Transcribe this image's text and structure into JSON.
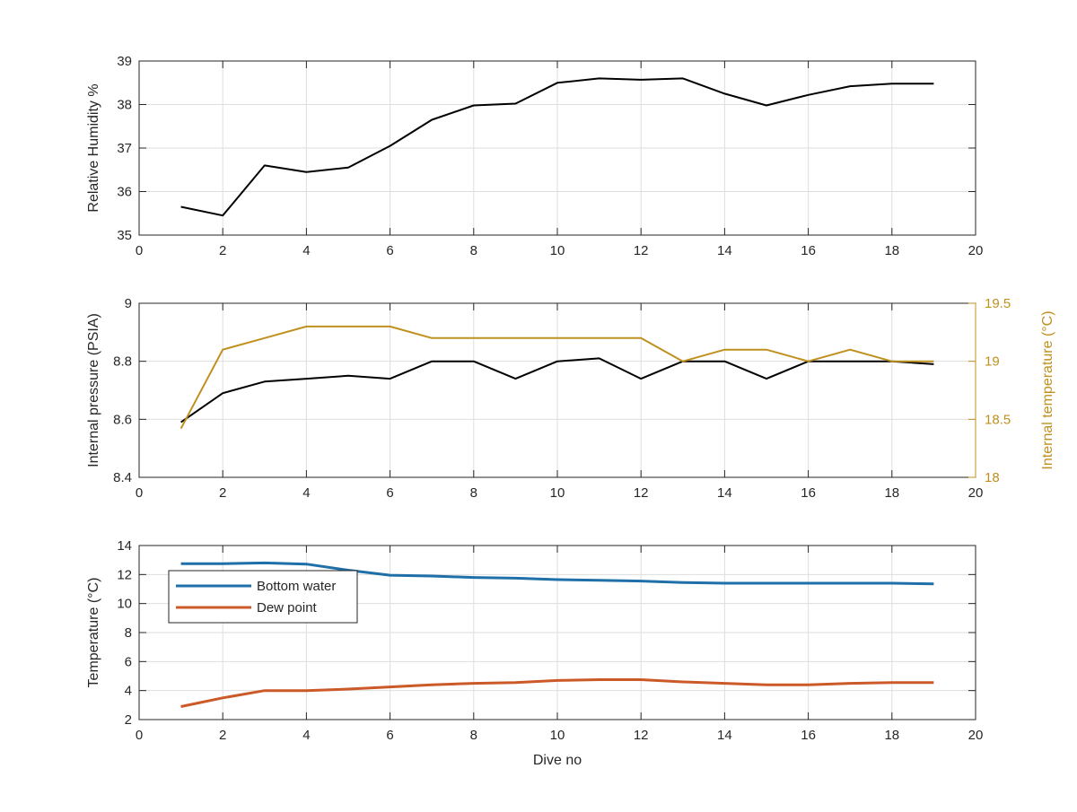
{
  "chart_data": [
    {
      "type": "line",
      "xlabel": "",
      "ylabel": "Relative Humidity %",
      "xlim": [
        0,
        20
      ],
      "ylim": [
        35,
        39
      ],
      "xticks": [
        "0",
        "2",
        "4",
        "6",
        "8",
        "10",
        "12",
        "14",
        "16",
        "18",
        "20"
      ],
      "yticks": [
        "35",
        "36",
        "37",
        "38",
        "39"
      ],
      "grid": true,
      "series": [
        {
          "color": "#000000",
          "x": [
            1,
            2,
            3,
            4,
            5,
            6,
            7,
            8,
            9,
            10,
            11,
            12,
            13,
            14,
            15,
            16,
            17,
            18,
            19
          ],
          "y": [
            35.65,
            35.45,
            36.6,
            36.45,
            36.55,
            37.05,
            37.65,
            37.98,
            38.02,
            38.5,
            38.6,
            38.57,
            38.6,
            38.25,
            37.98,
            38.22,
            38.42,
            38.48,
            38.48
          ]
        }
      ]
    },
    {
      "type": "line",
      "xlabel": "",
      "ylabel": "Internal pressure (PSIA)",
      "ylabel_right": "Internal temperature (°C)",
      "xlim": [
        0,
        20
      ],
      "ylim": [
        8.4,
        9
      ],
      "ylim_right": [
        18,
        19.5
      ],
      "xticks": [
        "0",
        "2",
        "4",
        "6",
        "8",
        "10",
        "12",
        "14",
        "16",
        "18",
        "20"
      ],
      "yticks": [
        "8.4",
        "8.6",
        "8.8",
        "9"
      ],
      "yticks_right": [
        "18",
        "18.5",
        "19",
        "19.5"
      ],
      "grid": true,
      "series": [
        {
          "axis": "left",
          "color": "#000000",
          "x": [
            1,
            2,
            3,
            4,
            5,
            6,
            7,
            8,
            9,
            10,
            11,
            12,
            13,
            14,
            15,
            16,
            17,
            18,
            19
          ],
          "y": [
            8.59,
            8.69,
            8.73,
            8.74,
            8.75,
            8.74,
            8.8,
            8.8,
            8.74,
            8.8,
            8.81,
            8.74,
            8.8,
            8.8,
            8.74,
            8.8,
            8.8,
            8.8,
            8.79
          ]
        },
        {
          "axis": "right",
          "color": "#c0901e",
          "x": [
            1,
            2,
            3,
            4,
            5,
            6,
            7,
            8,
            9,
            10,
            11,
            12,
            13,
            14,
            15,
            16,
            17,
            18,
            19
          ],
          "y": [
            18.42,
            19.1,
            19.2,
            19.3,
            19.3,
            19.3,
            19.2,
            19.2,
            19.2,
            19.2,
            19.2,
            19.2,
            19.0,
            19.1,
            19.1,
            19.0,
            19.1,
            19.0,
            19.0
          ]
        }
      ]
    },
    {
      "type": "line",
      "xlabel": "Dive no",
      "ylabel": "Temperature (°C)",
      "xlim": [
        0,
        20
      ],
      "ylim": [
        2,
        14
      ],
      "xticks": [
        "0",
        "2",
        "4",
        "6",
        "8",
        "10",
        "12",
        "14",
        "16",
        "18",
        "20"
      ],
      "yticks": [
        "2",
        "4",
        "6",
        "8",
        "10",
        "12",
        "14"
      ],
      "grid": true,
      "legend": "top-left",
      "series": [
        {
          "name": "Bottom water",
          "color": "#1f6fa8",
          "x": [
            1,
            2,
            3,
            4,
            5,
            6,
            7,
            8,
            9,
            10,
            11,
            12,
            13,
            14,
            15,
            16,
            17,
            18,
            19
          ],
          "y": [
            12.75,
            12.75,
            12.8,
            12.72,
            12.3,
            11.95,
            11.9,
            11.8,
            11.75,
            11.65,
            11.6,
            11.55,
            11.45,
            11.4,
            11.4,
            11.4,
            11.4,
            11.4,
            11.35
          ]
        },
        {
          "name": "Dew point",
          "color": "#cc5a28",
          "x": [
            1,
            2,
            3,
            4,
            5,
            6,
            7,
            8,
            9,
            10,
            11,
            12,
            13,
            14,
            15,
            16,
            17,
            18,
            19
          ],
          "y": [
            2.9,
            3.5,
            4.0,
            4.0,
            4.1,
            4.25,
            4.4,
            4.5,
            4.55,
            4.7,
            4.75,
            4.75,
            4.6,
            4.5,
            4.4,
            4.4,
            4.5,
            4.55,
            4.55
          ]
        }
      ]
    }
  ]
}
